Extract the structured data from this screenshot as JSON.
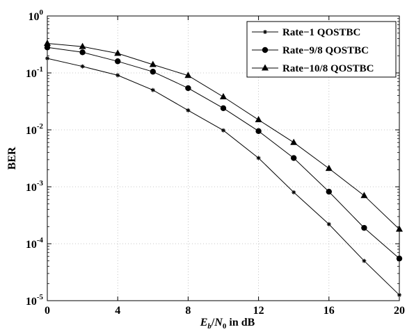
{
  "chart_data": {
    "type": "line",
    "title": "",
    "xlabel": {
      "symbol1": "E",
      "sub1": "b",
      "sep": "/",
      "symbol2": "N",
      "sub2": "0",
      "suffix": " in dB"
    },
    "ylabel": "BER",
    "xlim": [
      0,
      20
    ],
    "ylim": [
      1e-05,
      1
    ],
    "yscale": "log",
    "grid": true,
    "legend_position": "top-right",
    "xticks": [
      0,
      4,
      8,
      12,
      16,
      20
    ],
    "xtick_labels": [
      "0",
      "4",
      "8",
      "12",
      "16",
      "20"
    ],
    "yticks": [
      1,
      0.1,
      0.01,
      0.001,
      0.0001,
      1e-05
    ],
    "ytick_labels": [
      {
        "base": "10",
        "exp": "0"
      },
      {
        "base": "10",
        "exp": "-1"
      },
      {
        "base": "10",
        "exp": "-2"
      },
      {
        "base": "10",
        "exp": "-3"
      },
      {
        "base": "10",
        "exp": "-4"
      },
      {
        "base": "10",
        "exp": "-5"
      }
    ],
    "x": [
      0,
      2,
      4,
      6,
      8,
      10,
      12,
      14,
      16,
      18,
      20
    ],
    "series": [
      {
        "name": "Rate−1 QOSTBC",
        "marker": "asterisk",
        "color": "#000000",
        "values": [
          0.18,
          0.13,
          0.091,
          0.05,
          0.022,
          0.0098,
          0.0032,
          0.0008,
          0.00022,
          5e-05,
          1.26e-05
        ]
      },
      {
        "name": "Rate−9/8 QOSTBC",
        "marker": "circle",
        "color": "#000000",
        "values": [
          0.28,
          0.23,
          0.16,
          0.105,
          0.054,
          0.024,
          0.0095,
          0.0032,
          0.00082,
          0.00019,
          5.5e-05
        ]
      },
      {
        "name": "Rate−10/8 QOSTBC",
        "marker": "triangle",
        "color": "#000000",
        "values": [
          0.33,
          0.29,
          0.22,
          0.14,
          0.09,
          0.038,
          0.015,
          0.006,
          0.0021,
          0.0007,
          0.00018
        ]
      }
    ]
  }
}
